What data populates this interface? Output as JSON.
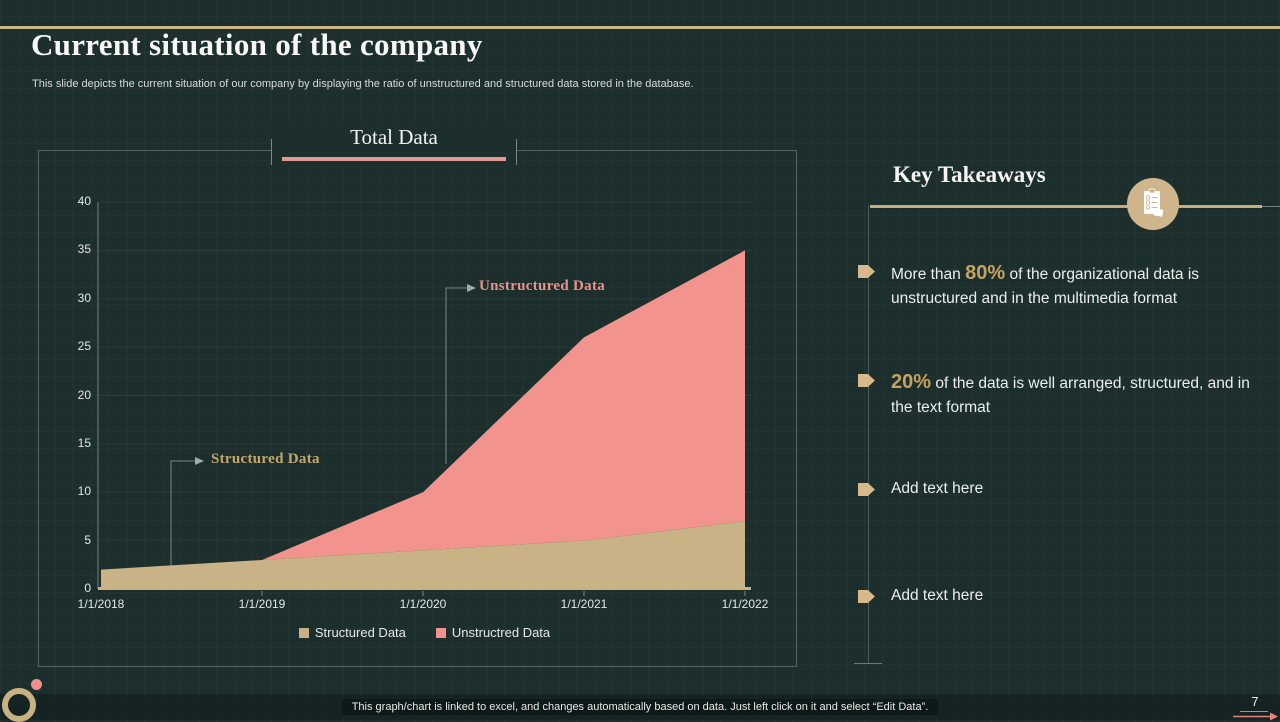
{
  "slide": {
    "title": "Current situation of the company",
    "subtitle": "This slide depicts the current situation of our company by displaying the ratio of unstructured and structured data stored in the database.",
    "footer_note": "This graph/chart is linked to excel, and changes automatically based on data. Just left click on it and select “Edit Data”.",
    "page_number": "7"
  },
  "chart": {
    "title": "Total Data",
    "annotation_structured": "Structured Data",
    "annotation_unstructured": "Unstructured Data"
  },
  "chart_data": {
    "type": "area",
    "stacked": true,
    "title": "Total Data",
    "x": [
      "1/1/2018",
      "1/1/2019",
      "1/1/2020",
      "1/1/2021",
      "1/1/2022"
    ],
    "series": [
      {
        "name": "Structured Data",
        "values": [
          2,
          3,
          4,
          5,
          7
        ],
        "color": "#c9b286"
      },
      {
        "name": "Unstructred Data",
        "values": [
          0,
          0,
          6,
          21,
          28
        ],
        "color": "#f2938d"
      }
    ],
    "totals": [
      2,
      3,
      10,
      26,
      35
    ],
    "ylim": [
      0,
      40
    ],
    "yticks": [
      0,
      5,
      10,
      15,
      20,
      25,
      30,
      35,
      40
    ],
    "grid": true,
    "legend_position": "bottom"
  },
  "takeaways": {
    "title": "Key Takeaways",
    "items": [
      {
        "prefix": "More than ",
        "highlight": "80%",
        "rest": " of the organizational data is unstructured and in the multimedia format"
      },
      {
        "prefix": "",
        "highlight": "20%",
        "rest": " of the data is well arranged, structured, and in the text format"
      },
      {
        "prefix": "",
        "highlight": "",
        "rest": "Add text here"
      },
      {
        "prefix": "",
        "highlight": "",
        "rest": "Add text here"
      }
    ]
  },
  "colors": {
    "background": "#1d2f2d",
    "accent_tan": "#c8b284",
    "accent_salmon": "#f2938d",
    "top_bar": "#ccb687",
    "gold_text": "#c4a45f"
  }
}
